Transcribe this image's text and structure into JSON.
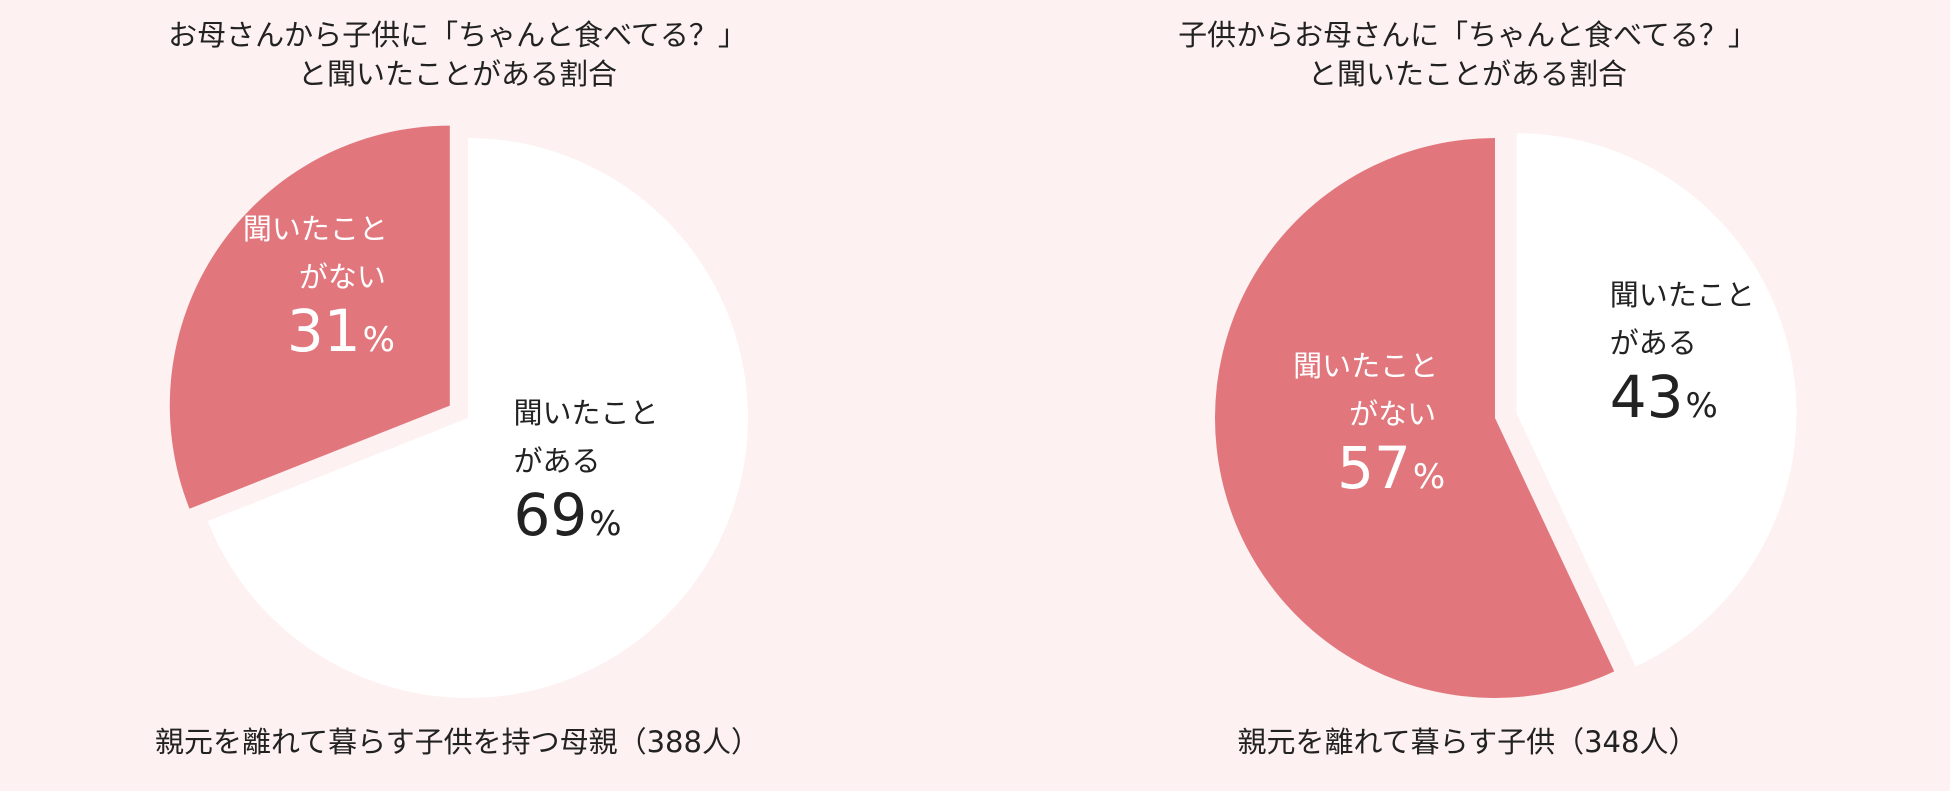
{
  "colors": {
    "background": "#fdf1f1",
    "red": "#e1777d",
    "white": "#ffffff",
    "dark_text": "#222222",
    "light_text": "#ffffff"
  },
  "chart_data": [
    {
      "type": "pie",
      "title": [
        "お母さんから子供に「ちゃんと食べてる？」",
        "と聞いたことがある割合"
      ],
      "subtitle": "親元を離れて暮らす子供を持つ母親（388人）",
      "slices": [
        {
          "label": [
            "聞いたこと",
            "がある"
          ],
          "value": 69,
          "unit": "%",
          "color": "#ffffff",
          "text_color": "#222222"
        },
        {
          "label": [
            "聞いたこと",
            "がない"
          ],
          "value": 31,
          "unit": "%",
          "color": "#e1777d",
          "text_color": "#ffffff",
          "exploded": true
        }
      ]
    },
    {
      "type": "pie",
      "title": [
        "子供からお母さんに「ちゃんと食べてる？」",
        "と聞いたことがある割合"
      ],
      "subtitle": "親元を離れて暮らす子供（348人）",
      "slices": [
        {
          "label": [
            "聞いたこと",
            "がある"
          ],
          "value": 43,
          "unit": "%",
          "color": "#ffffff",
          "text_color": "#222222",
          "exploded": true
        },
        {
          "label": [
            "聞いたこと",
            "がない"
          ],
          "value": 57,
          "unit": "%",
          "color": "#e1777d",
          "text_color": "#ffffff"
        }
      ]
    }
  ]
}
